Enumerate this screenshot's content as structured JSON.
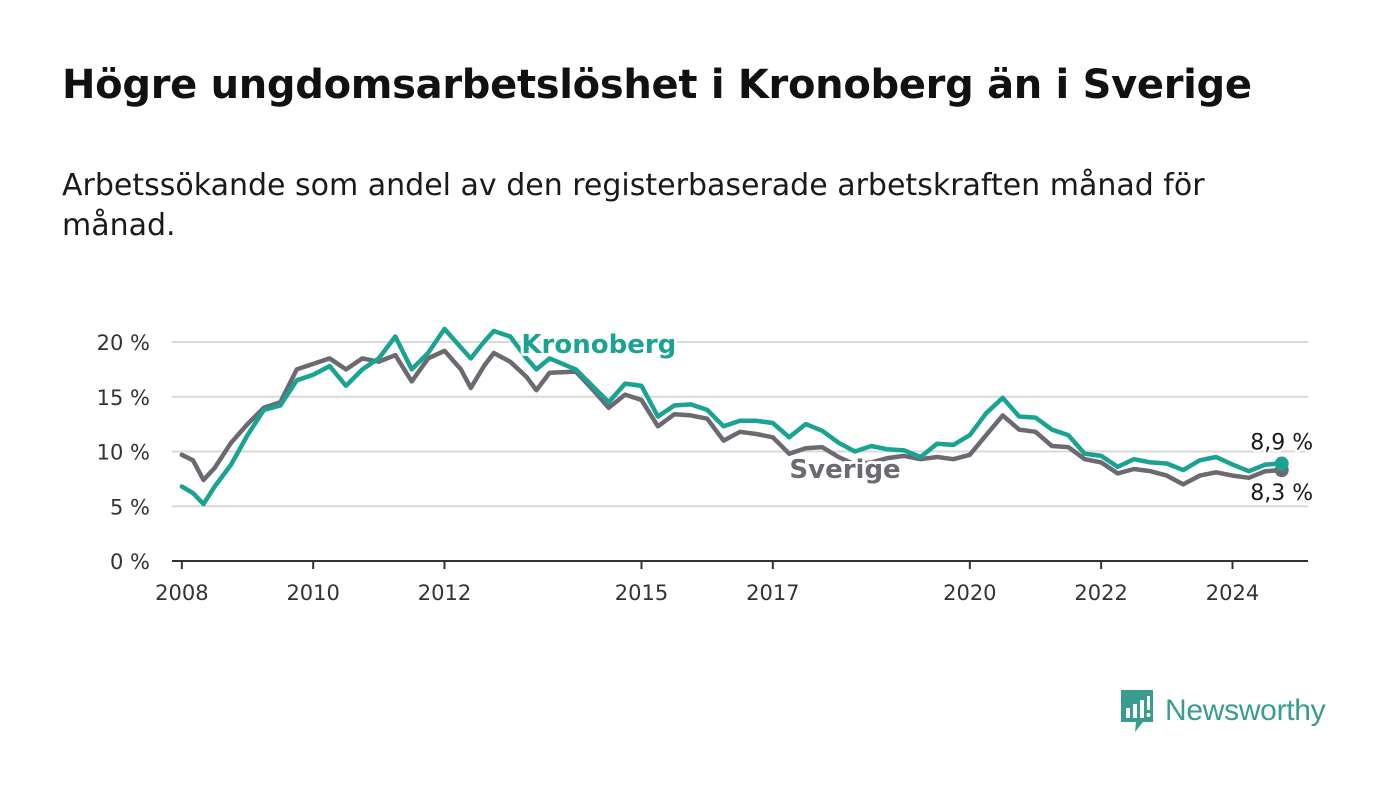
{
  "header": {
    "title": "Högre ungdomsarbetslöshet i Kronoberg än i Sverige",
    "subtitle": "Arbetssökande som andel av den registerbaserade arbetskraften månad för månad."
  },
  "brand": {
    "name": "Newsworthy",
    "icon": "newsworthy-logo-icon",
    "color": "#3a9c8f"
  },
  "chart_data": {
    "type": "line",
    "title": "Högre ungdomsarbetslöshet i Kronoberg än i Sverige",
    "subtitle": "Arbetssökande som andel av den registerbaserade arbetskraften månad för månad.",
    "xlabel": "",
    "ylabel": "",
    "xlim": [
      2007.85,
      2025.15
    ],
    "ylim": [
      0,
      20
    ],
    "y_ticks": [
      0,
      5,
      10,
      15,
      20
    ],
    "y_tick_labels": [
      "0 %",
      "5 %",
      "10 %",
      "15 %",
      "20 %"
    ],
    "x_ticks": [
      2008,
      2010,
      2012,
      2015,
      2017,
      2020,
      2022,
      2024
    ],
    "x_tick_labels": [
      "2008",
      "2010",
      "2012",
      "2015",
      "2017",
      "2020",
      "2022",
      "2024"
    ],
    "grid": "horizontal",
    "legend": "none",
    "series": [
      {
        "name": "Sverige",
        "color": "#6b6a70",
        "end_label": "8,3 %",
        "label_position": [
          2018.1,
          7.6
        ],
        "points": [
          [
            2008.0,
            9.7
          ],
          [
            2008.17,
            9.2
          ],
          [
            2008.33,
            7.4
          ],
          [
            2008.5,
            8.5
          ],
          [
            2008.75,
            10.8
          ],
          [
            2009.0,
            12.5
          ],
          [
            2009.25,
            14.0
          ],
          [
            2009.5,
            14.5
          ],
          [
            2009.75,
            17.5
          ],
          [
            2010.0,
            18.0
          ],
          [
            2010.25,
            18.5
          ],
          [
            2010.5,
            17.5
          ],
          [
            2010.75,
            18.5
          ],
          [
            2011.0,
            18.2
          ],
          [
            2011.25,
            18.8
          ],
          [
            2011.5,
            16.4
          ],
          [
            2011.75,
            18.5
          ],
          [
            2012.0,
            19.2
          ],
          [
            2012.25,
            17.5
          ],
          [
            2012.4,
            15.8
          ],
          [
            2012.6,
            17.8
          ],
          [
            2012.75,
            19.0
          ],
          [
            2013.0,
            18.2
          ],
          [
            2013.25,
            16.8
          ],
          [
            2013.4,
            15.6
          ],
          [
            2013.6,
            17.2
          ],
          [
            2014.0,
            17.3
          ],
          [
            2014.25,
            15.7
          ],
          [
            2014.5,
            14.0
          ],
          [
            2014.75,
            15.2
          ],
          [
            2015.0,
            14.7
          ],
          [
            2015.25,
            12.3
          ],
          [
            2015.5,
            13.4
          ],
          [
            2015.75,
            13.3
          ],
          [
            2016.0,
            13.0
          ],
          [
            2016.25,
            11.0
          ],
          [
            2016.5,
            11.8
          ],
          [
            2016.75,
            11.6
          ],
          [
            2017.0,
            11.3
          ],
          [
            2017.25,
            9.8
          ],
          [
            2017.5,
            10.3
          ],
          [
            2017.75,
            10.4
          ],
          [
            2018.0,
            9.5
          ],
          [
            2018.25,
            8.8
          ],
          [
            2018.5,
            9.0
          ],
          [
            2018.75,
            9.4
          ],
          [
            2019.0,
            9.6
          ],
          [
            2019.25,
            9.3
          ],
          [
            2019.5,
            9.5
          ],
          [
            2019.75,
            9.3
          ],
          [
            2020.0,
            9.7
          ],
          [
            2020.25,
            11.5
          ],
          [
            2020.5,
            13.3
          ],
          [
            2020.75,
            12.0
          ],
          [
            2021.0,
            11.8
          ],
          [
            2021.25,
            10.5
          ],
          [
            2021.5,
            10.4
          ],
          [
            2021.75,
            9.3
          ],
          [
            2022.0,
            9.0
          ],
          [
            2022.25,
            8.0
          ],
          [
            2022.5,
            8.4
          ],
          [
            2022.75,
            8.2
          ],
          [
            2023.0,
            7.8
          ],
          [
            2023.25,
            7.0
          ],
          [
            2023.5,
            7.8
          ],
          [
            2023.75,
            8.1
          ],
          [
            2024.0,
            7.8
          ],
          [
            2024.25,
            7.6
          ],
          [
            2024.5,
            8.2
          ],
          [
            2024.75,
            8.3
          ]
        ]
      },
      {
        "name": "Kronoberg",
        "color": "#1aa393",
        "end_label": "8,9 %",
        "label_position": [
          2014.35,
          19.0
        ],
        "points": [
          [
            2008.0,
            6.8
          ],
          [
            2008.17,
            6.2
          ],
          [
            2008.33,
            5.2
          ],
          [
            2008.5,
            6.8
          ],
          [
            2008.75,
            8.8
          ],
          [
            2009.0,
            11.5
          ],
          [
            2009.25,
            13.8
          ],
          [
            2009.5,
            14.2
          ],
          [
            2009.75,
            16.5
          ],
          [
            2010.0,
            17.0
          ],
          [
            2010.25,
            17.8
          ],
          [
            2010.5,
            16.0
          ],
          [
            2010.75,
            17.5
          ],
          [
            2011.0,
            18.5
          ],
          [
            2011.25,
            20.5
          ],
          [
            2011.5,
            17.5
          ],
          [
            2011.75,
            19.0
          ],
          [
            2012.0,
            21.2
          ],
          [
            2012.25,
            19.5
          ],
          [
            2012.4,
            18.5
          ],
          [
            2012.6,
            20.0
          ],
          [
            2012.75,
            21.0
          ],
          [
            2013.0,
            20.5
          ],
          [
            2013.25,
            18.5
          ],
          [
            2013.4,
            17.5
          ],
          [
            2013.6,
            18.5
          ],
          [
            2014.0,
            17.5
          ],
          [
            2014.25,
            16.0
          ],
          [
            2014.5,
            14.5
          ],
          [
            2014.75,
            16.2
          ],
          [
            2015.0,
            16.0
          ],
          [
            2015.25,
            13.2
          ],
          [
            2015.5,
            14.2
          ],
          [
            2015.75,
            14.3
          ],
          [
            2016.0,
            13.8
          ],
          [
            2016.25,
            12.3
          ],
          [
            2016.5,
            12.8
          ],
          [
            2016.75,
            12.8
          ],
          [
            2017.0,
            12.6
          ],
          [
            2017.25,
            11.3
          ],
          [
            2017.5,
            12.5
          ],
          [
            2017.75,
            11.9
          ],
          [
            2018.0,
            10.8
          ],
          [
            2018.25,
            10.0
          ],
          [
            2018.5,
            10.5
          ],
          [
            2018.75,
            10.2
          ],
          [
            2019.0,
            10.1
          ],
          [
            2019.25,
            9.5
          ],
          [
            2019.5,
            10.7
          ],
          [
            2019.75,
            10.6
          ],
          [
            2020.0,
            11.5
          ],
          [
            2020.25,
            13.5
          ],
          [
            2020.5,
            14.9
          ],
          [
            2020.75,
            13.2
          ],
          [
            2021.0,
            13.1
          ],
          [
            2021.25,
            12.0
          ],
          [
            2021.5,
            11.5
          ],
          [
            2021.75,
            9.8
          ],
          [
            2022.0,
            9.6
          ],
          [
            2022.25,
            8.6
          ],
          [
            2022.5,
            9.3
          ],
          [
            2022.75,
            9.0
          ],
          [
            2023.0,
            8.9
          ],
          [
            2023.25,
            8.3
          ],
          [
            2023.5,
            9.2
          ],
          [
            2023.75,
            9.5
          ],
          [
            2024.0,
            8.8
          ],
          [
            2024.25,
            8.2
          ],
          [
            2024.5,
            8.8
          ],
          [
            2024.75,
            8.9
          ]
        ]
      }
    ]
  }
}
